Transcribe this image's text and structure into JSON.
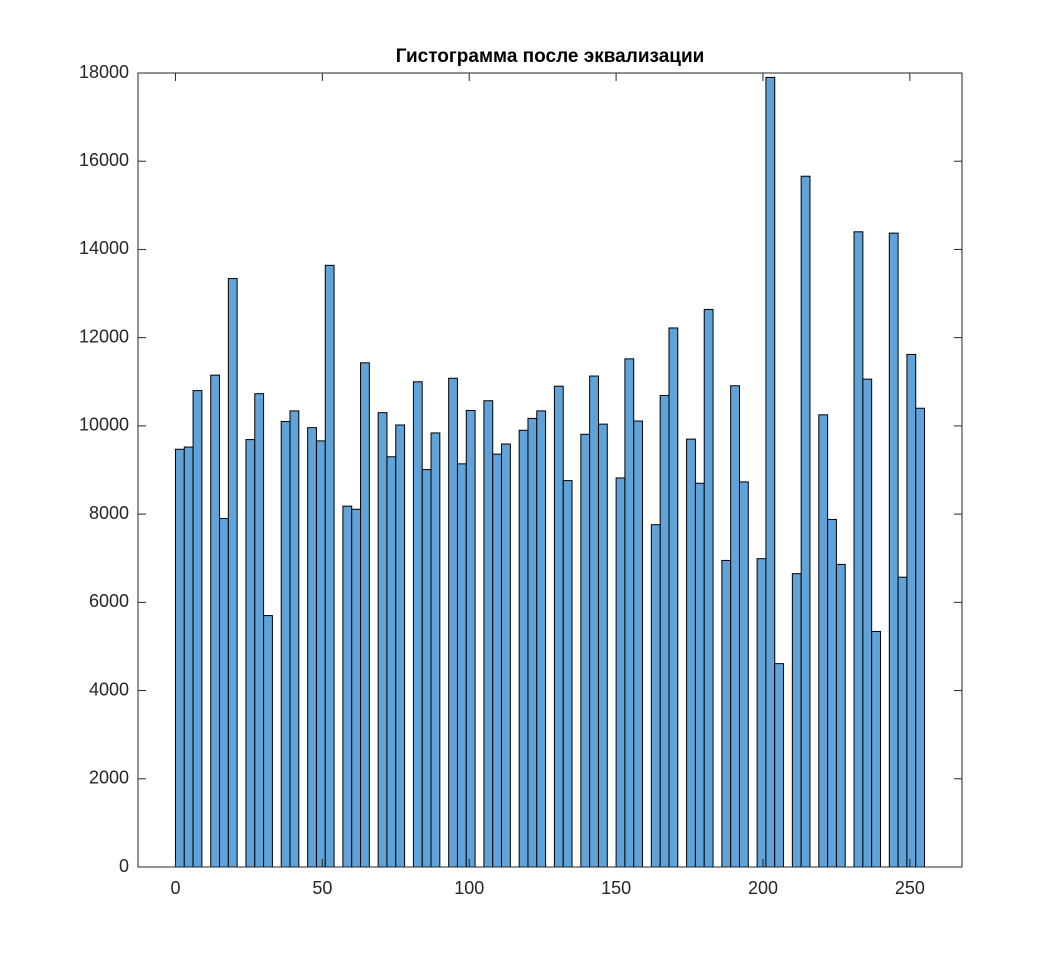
{
  "chart_data": {
    "type": "histogram",
    "title": "Гистограмма после эквализации",
    "bins": [
      0,
      3,
      6,
      9,
      12,
      15,
      18,
      21,
      24,
      27,
      30,
      33,
      36,
      39,
      42,
      45,
      48,
      51,
      54,
      57,
      60,
      63,
      66,
      69,
      72,
      75,
      78,
      81,
      84,
      87,
      90,
      93,
      96,
      99,
      102,
      105,
      108,
      111,
      114,
      117,
      120,
      123,
      126,
      129,
      132,
      135,
      138,
      141,
      144,
      147,
      150,
      153,
      156,
      159,
      162,
      165,
      168,
      171,
      174,
      177,
      180,
      183,
      186,
      189,
      192,
      195,
      198,
      201,
      204,
      207,
      210,
      213,
      216,
      219,
      222,
      225,
      228,
      231,
      234,
      237,
      240,
      243,
      246,
      249,
      252,
      255
    ],
    "counts": [
      9470,
      9520,
      10800,
      0,
      11150,
      7900,
      13340,
      0,
      9690,
      10730,
      5700,
      0,
      10100,
      10340,
      0,
      9960,
      9660,
      13640,
      0,
      8180,
      8110,
      11430,
      0,
      10300,
      9300,
      10020,
      0,
      11000,
      9010,
      9840,
      0,
      11080,
      9140,
      10350,
      0,
      10570,
      9360,
      9590,
      0,
      9900,
      10170,
      10340,
      0,
      10900,
      8760,
      0,
      9810,
      11130,
      10040,
      0,
      8820,
      11520,
      10110,
      0,
      7760,
      10690,
      12220,
      0,
      9700,
      8700,
      12640,
      0,
      6950,
      10910,
      8730,
      0,
      6990,
      17900,
      4610,
      0,
      6650,
      15660,
      0,
      10250,
      7880,
      6860,
      0,
      14400,
      11060,
      5340,
      0,
      14370,
      6570,
      11620,
      10400
    ],
    "color": "#5fa3d8",
    "xlim": [
      -12.75,
      267.75
    ],
    "xticks": [
      0,
      50,
      100,
      150,
      200,
      250
    ],
    "ylim": [
      0,
      18000
    ],
    "yticks": [
      0,
      2000,
      4000,
      6000,
      8000,
      10000,
      12000,
      14000,
      16000,
      18000
    ],
    "grid": false
  }
}
